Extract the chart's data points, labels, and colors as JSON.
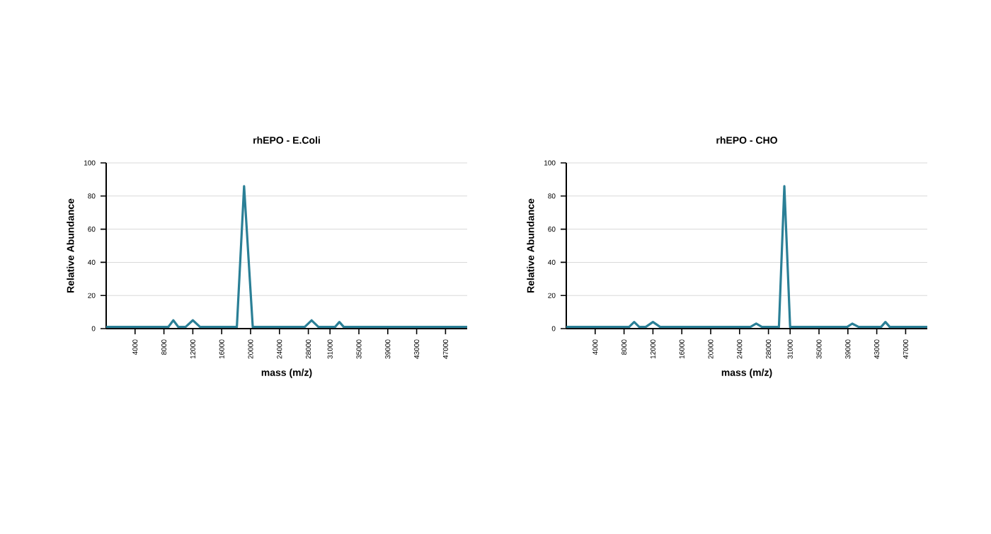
{
  "chart_data": [
    {
      "type": "line",
      "title": "rhEPO - E.Coli",
      "xlabel": "mass (m/z)",
      "ylabel": "Relative Abundance",
      "color": "#2a7f96",
      "grid": "y",
      "xlim": [
        0,
        50000
      ],
      "ylim": [
        0,
        100
      ],
      "yticks": [
        0,
        20,
        40,
        60,
        80,
        100
      ],
      "xticks": [
        4000,
        8000,
        12000,
        16000,
        20000,
        24000,
        28000,
        31000,
        35000,
        39000,
        43000,
        47000
      ],
      "x": [
        0,
        8600,
        9300,
        10000,
        11000,
        12000,
        13000,
        18100,
        19100,
        20300,
        27500,
        28450,
        29400,
        31700,
        32300,
        32900,
        50000
      ],
      "values": [
        1,
        1,
        5,
        1,
        1,
        5,
        1,
        1,
        86,
        1,
        1,
        5,
        1,
        1,
        4,
        1,
        1
      ]
    },
    {
      "type": "line",
      "title": "rhEPO - CHO",
      "xlabel": "mass (m/z)",
      "ylabel": "Relative Abundance",
      "color": "#2a7f96",
      "grid": "y",
      "xlim": [
        0,
        50000
      ],
      "ylim": [
        0,
        100
      ],
      "yticks": [
        0,
        20,
        40,
        60,
        80,
        100
      ],
      "xticks": [
        4000,
        8000,
        12000,
        16000,
        20000,
        24000,
        28000,
        31000,
        35000,
        39000,
        43000,
        47000
      ],
      "x": [
        0,
        8700,
        9400,
        10100,
        11000,
        12000,
        13000,
        25500,
        26300,
        27100,
        29450,
        30200,
        31000,
        38900,
        39600,
        40500,
        43600,
        44200,
        44800,
        50000
      ],
      "values": [
        1,
        1,
        4,
        1,
        1,
        4,
        1,
        1,
        3,
        1,
        1,
        86,
        1,
        1,
        3,
        1,
        1,
        4,
        1,
        1
      ]
    }
  ]
}
